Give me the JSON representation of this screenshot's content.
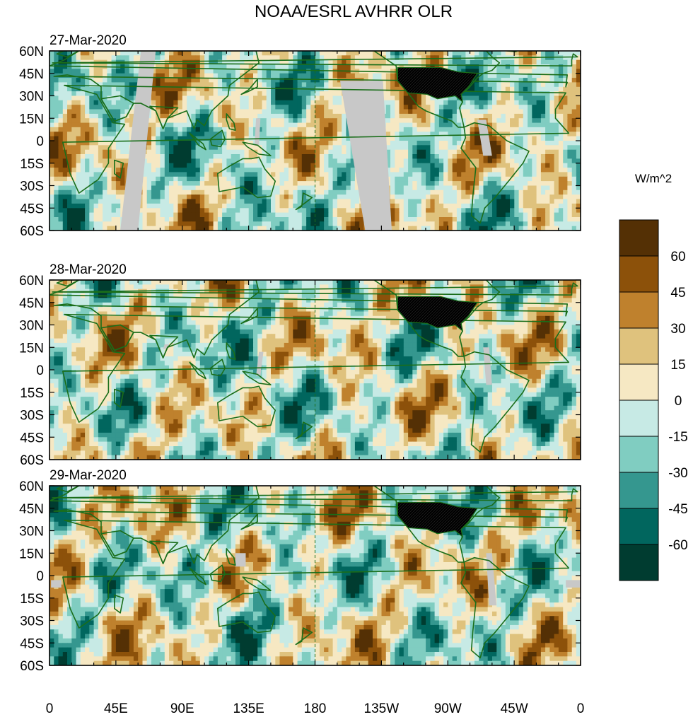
{
  "figure": {
    "title": "NOAA/ESRL AVHRR OLR",
    "units": "W/m^2"
  },
  "panels": [
    {
      "date": "27-Mar-2020"
    },
    {
      "date": "28-Mar-2020"
    },
    {
      "date": "29-Mar-2020"
    }
  ],
  "axes": {
    "lat_labels": [
      "60N",
      "45N",
      "30N",
      "15N",
      "0",
      "15S",
      "30S",
      "45S",
      "60S"
    ],
    "lat_values": [
      60,
      45,
      30,
      15,
      0,
      -15,
      -30,
      -45,
      -60
    ],
    "lon_labels": [
      "0",
      "45E",
      "90E",
      "135E",
      "180",
      "135W",
      "90W",
      "45W",
      "0"
    ],
    "lon_values": [
      0,
      45,
      90,
      135,
      180,
      225,
      270,
      315,
      360
    ]
  },
  "colorbar": {
    "tick_labels": [
      "60",
      "45",
      "30",
      "15",
      "0",
      "-15",
      "-30",
      "-45",
      "-60"
    ],
    "levels": [
      60,
      45,
      30,
      15,
      0,
      -15,
      -30,
      -45,
      -60
    ],
    "colors": [
      "#543005",
      "#8c510a",
      "#bf812d",
      "#dfc27d",
      "#f6e8c3",
      "#c7eae5",
      "#80cdc1",
      "#35978f",
      "#01665e",
      "#003c30"
    ]
  },
  "colors": {
    "coastline": "#1a6e1a",
    "missing": "#c8c8c8",
    "land_dense": "#000000"
  }
}
